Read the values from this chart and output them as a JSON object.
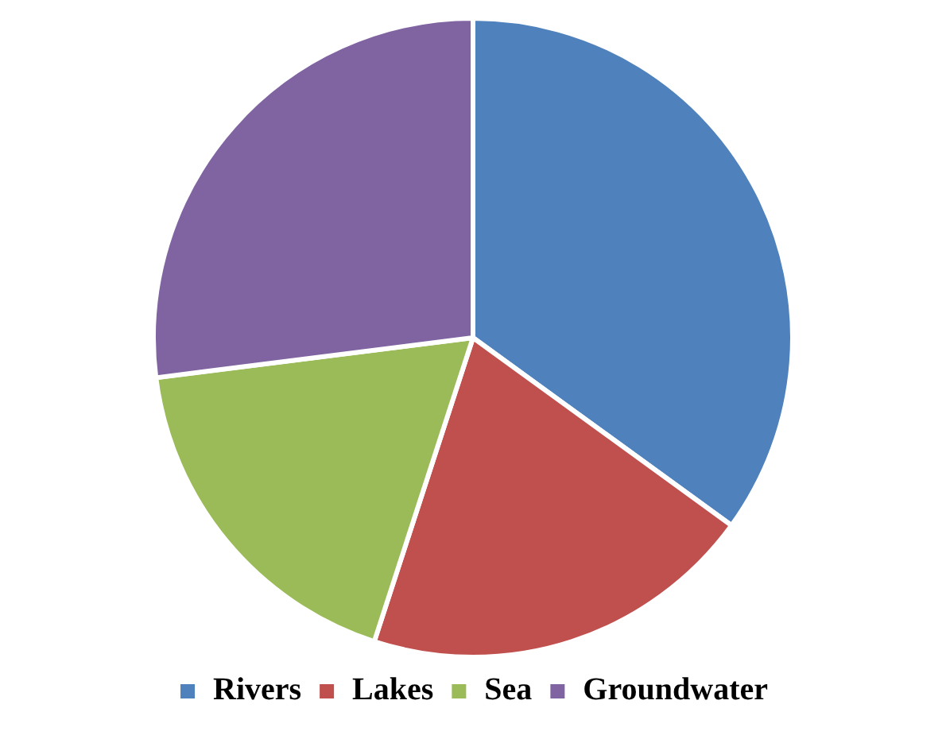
{
  "chart_data": {
    "type": "pie",
    "categories": [
      "Rivers",
      "Lakes",
      "Sea",
      "Groundwater"
    ],
    "values": [
      35,
      20,
      18,
      27
    ],
    "colors": [
      "#4f81bd",
      "#c0504d",
      "#9bbb59",
      "#8064a2"
    ],
    "legend": "bottom"
  }
}
